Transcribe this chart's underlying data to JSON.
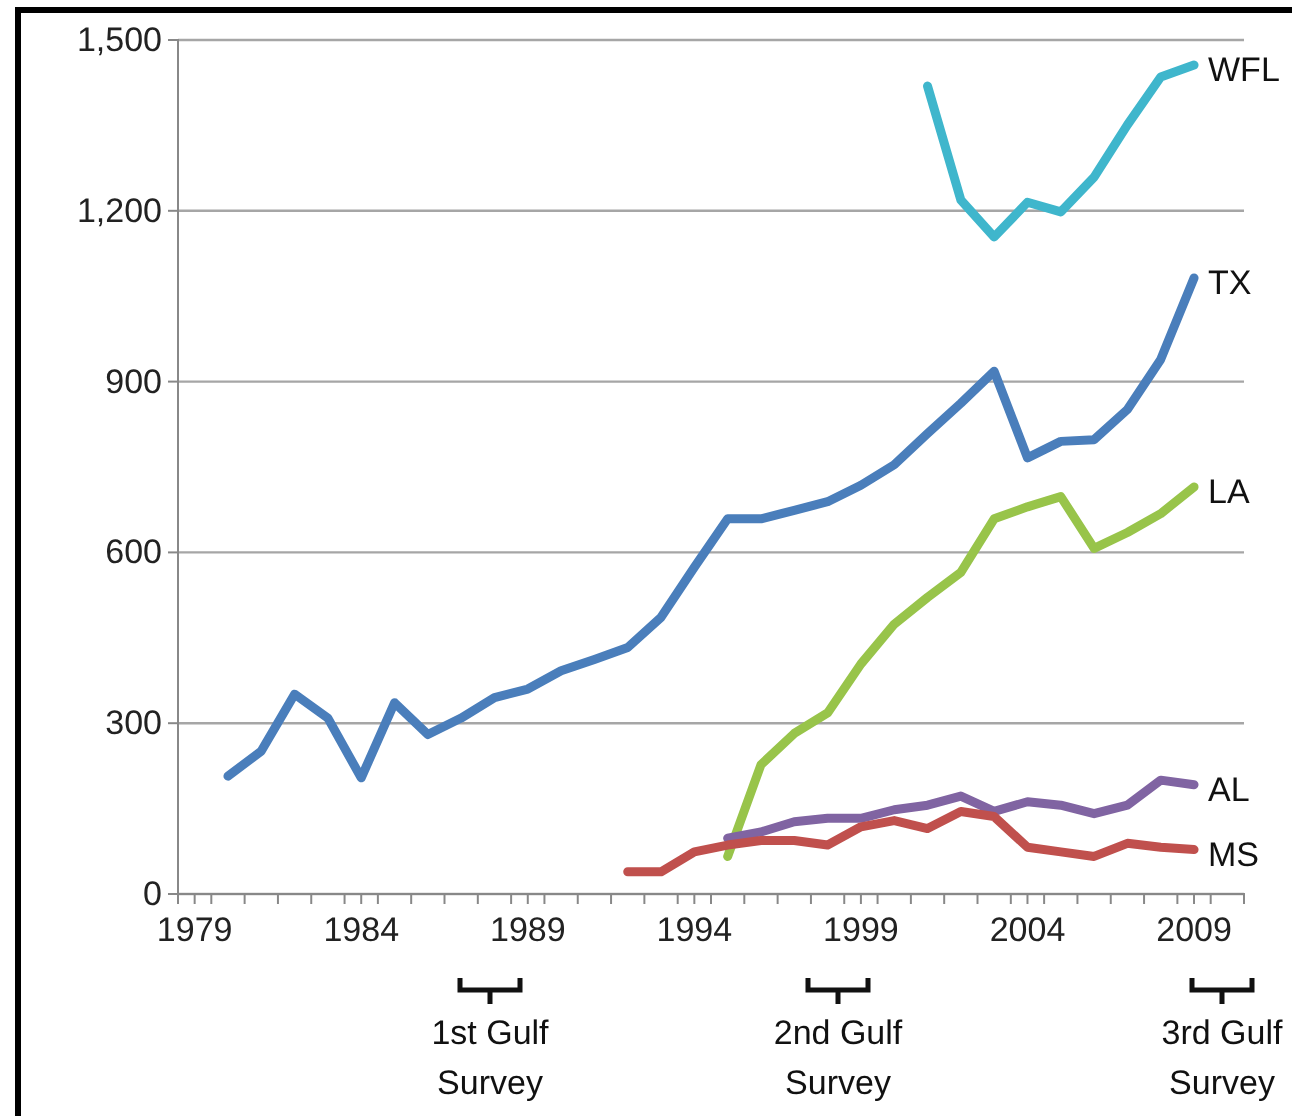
{
  "chart_data": {
    "type": "line",
    "xlim": [
      1978.5,
      2010.5
    ],
    "xticks": [
      {
        "value": 1978.5,
        "label": null
      },
      {
        "value": 1979,
        "label": "1979"
      },
      {
        "value": 1979.5,
        "label": null
      },
      {
        "value": 1980.5,
        "label": null
      },
      {
        "value": 1981.5,
        "label": null
      },
      {
        "value": 1982.5,
        "label": null
      },
      {
        "value": 1983.5,
        "label": null
      },
      {
        "value": 1984,
        "label": "1984"
      },
      {
        "value": 1984.5,
        "label": null
      },
      {
        "value": 1985.5,
        "label": null
      },
      {
        "value": 1986.5,
        "label": null
      },
      {
        "value": 1987.5,
        "label": null
      },
      {
        "value": 1988.5,
        "label": null
      },
      {
        "value": 1989,
        "label": "1989"
      },
      {
        "value": 1989.5,
        "label": null
      },
      {
        "value": 1990.5,
        "label": null
      },
      {
        "value": 1991.5,
        "label": null
      },
      {
        "value": 1992.5,
        "label": null
      },
      {
        "value": 1993.5,
        "label": null
      },
      {
        "value": 1994,
        "label": "1994"
      },
      {
        "value": 1994.5,
        "label": null
      },
      {
        "value": 1995.5,
        "label": null
      },
      {
        "value": 1996.5,
        "label": null
      },
      {
        "value": 1997.5,
        "label": null
      },
      {
        "value": 1998.5,
        "label": null
      },
      {
        "value": 1999,
        "label": "1999"
      },
      {
        "value": 1999.5,
        "label": null
      },
      {
        "value": 2000.5,
        "label": null
      },
      {
        "value": 2001.5,
        "label": null
      },
      {
        "value": 2002.5,
        "label": null
      },
      {
        "value": 2003.5,
        "label": null
      },
      {
        "value": 2004,
        "label": "2004"
      },
      {
        "value": 2004.5,
        "label": null
      },
      {
        "value": 2005.5,
        "label": null
      },
      {
        "value": 2006.5,
        "label": null
      },
      {
        "value": 2007.5,
        "label": null
      },
      {
        "value": 2008.5,
        "label": null
      },
      {
        "value": 2009,
        "label": "2009"
      },
      {
        "value": 2009.5,
        "label": null
      },
      {
        "value": 2010.5,
        "label": null
      }
    ],
    "ylim": [
      0,
      1500
    ],
    "yticks": [
      {
        "value": 0,
        "label": "0"
      },
      {
        "value": 300,
        "label": "300"
      },
      {
        "value": 600,
        "label": "600"
      },
      {
        "value": 900,
        "label": "900"
      },
      {
        "value": 1200,
        "label": "1,200"
      },
      {
        "value": 1500,
        "label": "1,500"
      }
    ],
    "grid": "y",
    "legend": false,
    "line_style": "solid",
    "marker": "none",
    "series": [
      {
        "name": "WFL",
        "color": "#3fb6cc",
        "x": [
          2001,
          2002,
          2003,
          2004,
          2005,
          2006,
          2007,
          2008,
          2009
        ],
        "values": [
          1419,
          1219,
          1154,
          1215,
          1198,
          1259,
          1351,
          1435,
          1456
        ]
      },
      {
        "name": "TX",
        "color": "#4a7ebb",
        "x": [
          1980,
          1981,
          1982,
          1983,
          1984,
          1985,
          1986,
          1987,
          1988,
          1989,
          1990,
          1991,
          1992,
          1993,
          1994,
          1995,
          1996,
          1997,
          1998,
          1999,
          2000,
          2001,
          2002,
          2003,
          2004,
          2005,
          2006,
          2007,
          2008,
          2009
        ],
        "values": [
          207,
          251,
          351,
          309,
          204,
          336,
          280,
          309,
          345,
          360,
          392,
          412,
          433,
          486,
          574,
          659,
          659,
          674,
          689,
          718,
          754,
          809,
          862,
          918,
          766,
          795,
          798,
          851,
          939,
          1082
        ]
      },
      {
        "name": "LA",
        "color": "#98c44a",
        "x": [
          1995,
          1996,
          1997,
          1998,
          1999,
          2000,
          2001,
          2002,
          2003,
          2004,
          2005,
          2006,
          2007,
          2008,
          2009
        ],
        "values": [
          66,
          227,
          282,
          318,
          404,
          474,
          521,
          565,
          659,
          680,
          698,
          607,
          635,
          668,
          715
        ]
      },
      {
        "name": "AL",
        "color": "#8064a2",
        "x": [
          1995,
          1996,
          1997,
          1998,
          1999,
          2000,
          2001,
          2002,
          2003,
          2004,
          2005,
          2006,
          2007,
          2008,
          2009
        ],
        "values": [
          98,
          109,
          127,
          133,
          133,
          148,
          156,
          172,
          145,
          162,
          156,
          141,
          156,
          200,
          192
        ]
      },
      {
        "name": "MS",
        "color": "#c0504d",
        "x": [
          1992,
          1993,
          1994,
          1995,
          1996,
          1997,
          1998,
          1999,
          2000,
          2001,
          2002,
          2003,
          2004,
          2005,
          2006,
          2007,
          2008,
          2009
        ],
        "values": [
          39,
          39,
          74,
          86,
          94,
          94,
          86,
          118,
          129,
          115,
          145,
          136,
          82,
          74,
          66,
          89,
          82,
          78
        ]
      }
    ],
    "annotations": [
      "1st Gulf Survey",
      "2nd Gulf Survey",
      "3rd Gulf Survey"
    ]
  }
}
